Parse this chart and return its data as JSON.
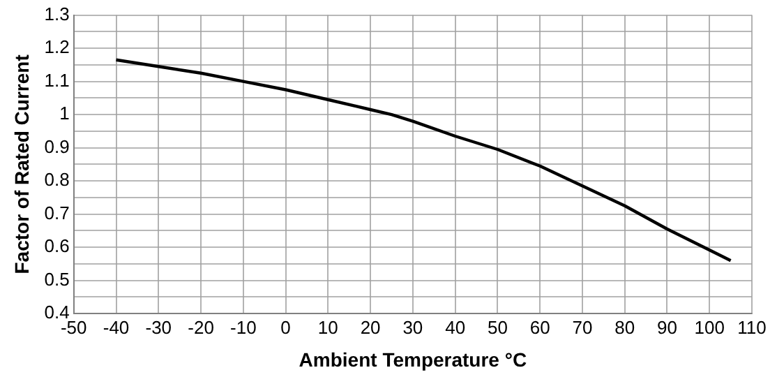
{
  "chart_data": {
    "type": "line",
    "xlabel": "Ambient Temperature °C",
    "ylabel": "Factor of Rated Current",
    "x": [
      -40,
      -30,
      -20,
      -10,
      0,
      10,
      20,
      25,
      30,
      40,
      50,
      60,
      70,
      80,
      90,
      105
    ],
    "series": [
      {
        "color": "#000000",
        "values": [
          1.165,
          1.145,
          1.125,
          1.1,
          1.075,
          1.045,
          1.015,
          1.0,
          0.98,
          0.935,
          0.895,
          0.845,
          0.785,
          0.725,
          0.655,
          0.56
        ]
      }
    ],
    "xlim": [
      -50,
      110
    ],
    "xticks": [
      -50,
      -40,
      -30,
      -20,
      -10,
      0,
      10,
      20,
      30,
      40,
      50,
      60,
      70,
      80,
      90,
      100,
      110
    ],
    "ylim": [
      0.4,
      1.3
    ],
    "yticks": [
      0.4,
      {
        "value": 0.45,
        "label": null
      },
      0.5,
      {
        "value": 0.55,
        "label": null
      },
      0.6,
      {
        "value": 0.65,
        "label": null
      },
      0.7,
      {
        "value": 0.75,
        "label": null
      },
      0.8,
      {
        "value": 0.85,
        "label": null
      },
      0.9,
      {
        "value": 0.95,
        "label": null
      },
      1,
      {
        "value": 1.05,
        "label": null
      },
      1.1,
      {
        "value": 1.15,
        "label": null
      },
      1.2,
      {
        "value": 1.25,
        "label": null
      },
      1.3
    ],
    "grid": true,
    "legend": false,
    "marker": "none",
    "line_style": "solid"
  }
}
